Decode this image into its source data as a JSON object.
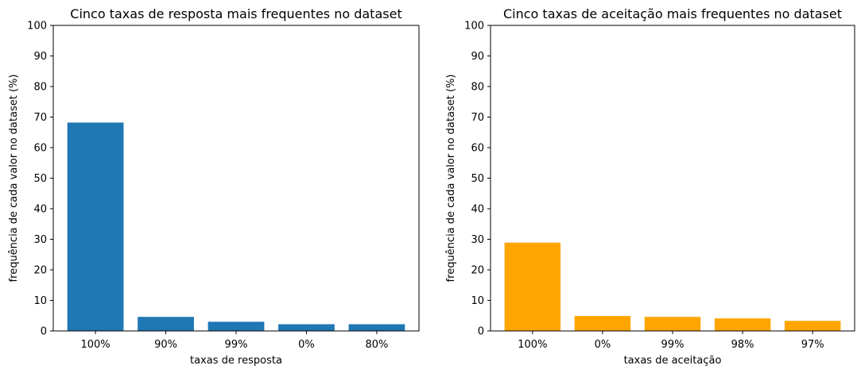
{
  "chart_data": [
    {
      "type": "bar",
      "title": "Cinco taxas de resposta mais frequentes no dataset",
      "xlabel": "taxas de resposta",
      "ylabel": "frequência de cada valor no dataset (%)",
      "categories": [
        "100%",
        "90%",
        "99%",
        "0%",
        "80%"
      ],
      "values": [
        68.2,
        4.6,
        3.0,
        2.2,
        2.2
      ],
      "ylim": [
        0,
        100
      ],
      "yticks": [
        "0",
        "10",
        "20",
        "30",
        "40",
        "50",
        "60",
        "70",
        "80",
        "90",
        "100"
      ],
      "color": "#1f77b4",
      "grid": false
    },
    {
      "type": "bar",
      "title": "Cinco taxas de aceitação mais frequentes no dataset",
      "xlabel": "taxas de aceitação",
      "ylabel": "frequência de cada valor no dataset (%)",
      "categories": [
        "100%",
        "0%",
        "99%",
        "98%",
        "97%"
      ],
      "values": [
        28.9,
        4.9,
        4.6,
        4.1,
        3.3
      ],
      "ylim": [
        0,
        100
      ],
      "yticks": [
        "0",
        "10",
        "20",
        "30",
        "40",
        "50",
        "60",
        "70",
        "80",
        "90",
        "100"
      ],
      "color": "#ffa500",
      "grid": false
    }
  ]
}
